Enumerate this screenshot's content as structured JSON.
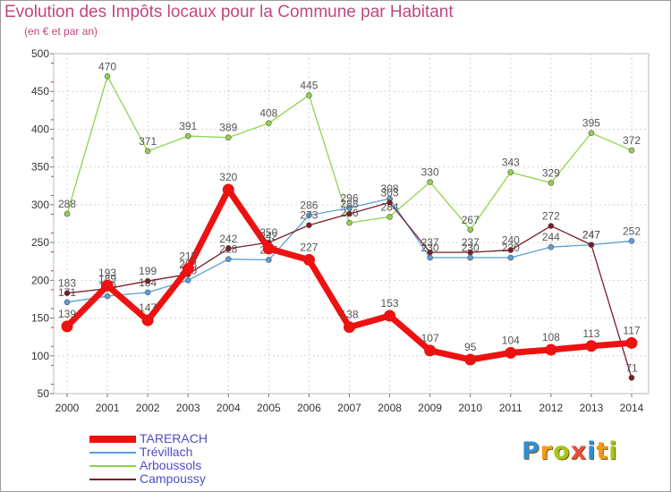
{
  "chart_data": {
    "type": "line",
    "title": "Evolution des Impôts locaux pour la Commune par Habitant",
    "subtitle": "(en € et par an)",
    "xlabel": "",
    "ylabel": "",
    "x": [
      "2000",
      "2001",
      "2002",
      "2003",
      "2004",
      "2005",
      "2006",
      "2007",
      "2008",
      "2009",
      "2010",
      "2011",
      "2012",
      "2013",
      "2014"
    ],
    "ylim": [
      50,
      500
    ],
    "yticks": [
      "50",
      "100",
      "150",
      "200",
      "250",
      "300",
      "350",
      "400",
      "450",
      "500"
    ],
    "grid": true,
    "legend_position": "bottom-left",
    "series": [
      {
        "name": "Arboussols",
        "color": "#8fd44a",
        "values": [
          288,
          470,
          371,
          391,
          389,
          408,
          445,
          276,
          284,
          330,
          267,
          343,
          329,
          395,
          372
        ],
        "labels": [
          "288",
          "470",
          "371",
          "391",
          "389",
          "408",
          "445",
          "276",
          "284",
          "330",
          "267",
          "343",
          "329",
          "395",
          "372"
        ]
      },
      {
        "name": "Trévillach",
        "color": "#5a9ed6",
        "values": [
          171,
          179,
          184,
          200,
          228,
          227,
          286,
          296,
          308,
          230,
          230,
          230,
          244,
          247,
          252
        ],
        "labels": [
          "171",
          "179",
          "184",
          "200",
          "228",
          "227",
          "286",
          "296",
          "308",
          "230",
          "230",
          "230",
          "244",
          "247",
          "252"
        ]
      },
      {
        "name": "Campoussy",
        "color": "#7a1e26",
        "values": [
          183,
          189,
          199,
          208,
          242,
          250,
          273,
          288,
          303,
          237,
          237,
          240,
          272,
          247,
          71
        ],
        "labels": [
          "183",
          "189",
          "199",
          "208",
          "242",
          "250",
          "273",
          "288",
          "303",
          "237",
          "237",
          "240",
          "272",
          "247",
          "71"
        ]
      },
      {
        "name": "TARERACH",
        "color": "#ee1111",
        "values": [
          139,
          193,
          147,
          215,
          320,
          242,
          227,
          138,
          153,
          107,
          95,
          104,
          108,
          113,
          117
        ],
        "labels": [
          "139",
          "193",
          "147",
          "215",
          "320",
          "242",
          "227",
          "138",
          "153",
          "107",
          "95",
          "104",
          "108",
          "113",
          "117"
        ]
      }
    ]
  },
  "legend": {
    "items": [
      {
        "name": "TARERACH",
        "color": "#ee1111"
      },
      {
        "name": "Trévillach",
        "color": "#5a9ed6"
      },
      {
        "name": "Arboussols",
        "color": "#8fd44a"
      },
      {
        "name": "Campoussy",
        "color": "#7a1e26"
      }
    ]
  },
  "logo": {
    "letters": [
      "P",
      "r",
      "o",
      "x",
      "i",
      "t",
      "i"
    ],
    "colors": [
      "#2f8fd8",
      "#f39a1a",
      "#a6c61a",
      "#e84c3d",
      "#2f8fd8",
      "#f39a1a",
      "#a6c61a"
    ]
  }
}
